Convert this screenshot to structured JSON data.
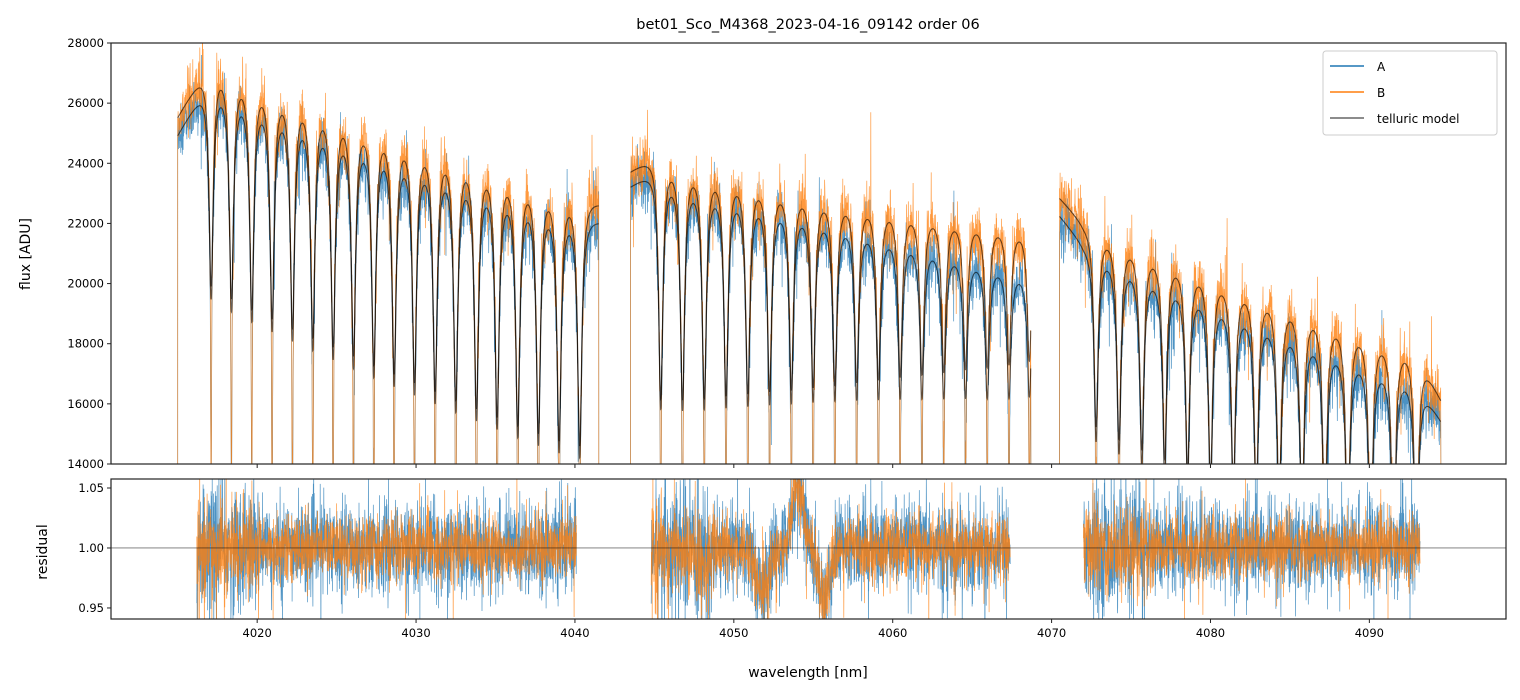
{
  "chart_data": [
    {
      "type": "line",
      "title": "bet01_Sco_M4368_2023-04-16_09142  order 06",
      "xlabel": "",
      "ylabel": "flux [ADU]",
      "xlim": [
        4010.8,
        4098.6
      ],
      "ylim": [
        14000,
        28000
      ],
      "yticks": [
        "14000",
        "16000",
        "18000",
        "20000",
        "22000",
        "24000",
        "26000",
        "28000"
      ],
      "ytick_values": [
        14000,
        16000,
        18000,
        20000,
        22000,
        24000,
        26000,
        28000
      ],
      "legend": {
        "position": "top-right",
        "entries": [
          "A",
          "B",
          "telluric model"
        ]
      },
      "colors": {
        "A": "#1f77b4",
        "B": "#ff7f0e",
        "model": "#000000"
      },
      "segments": [
        {
          "range": [
            4015.0,
            4041.5
          ],
          "cont_A": [
            [
              4015.0,
              25000
            ],
            [
              4017,
              26950
            ],
            [
              4040,
              22550
            ],
            [
              4041.5,
              22200
            ]
          ],
          "cont_B": [
            [
              4015.0,
              25600
            ],
            [
              4017,
              27550
            ],
            [
              4040,
              23180
            ],
            [
              4041.5,
              22800
            ]
          ],
          "lines": [
            4017.1,
            4018.38,
            4019.66,
            4020.94,
            4022.22,
            4023.5,
            4024.78,
            4026.06,
            4027.34,
            4028.62,
            4029.9,
            4031.2,
            4032.5,
            4033.8,
            4035.1,
            4036.4,
            4037.7,
            4039.0,
            4040.3
          ],
          "depth": [
            0.27,
            0.36
          ]
        },
        {
          "range": [
            4043.5,
            4068.7
          ],
          "cont_A": [
            [
              4043.5,
              23300
            ],
            [
              4045,
              23900
            ],
            [
              4056,
              22400
            ],
            [
              4068.7,
              20400
            ]
          ],
          "cont_B": [
            [
              4043.5,
              23800
            ],
            [
              4045,
              24400
            ],
            [
              4056,
              23100
            ],
            [
              4068.7,
              21900
            ]
          ],
          "lines": [
            4045.4,
            4046.77,
            4048.14,
            4049.51,
            4050.88,
            4052.25,
            4053.62,
            4054.99,
            4056.36,
            4057.73,
            4059.1,
            4060.47,
            4061.84,
            4063.21,
            4064.58,
            4065.95,
            4067.32,
            4068.6
          ],
          "depth": [
            0.33,
            0.2
          ]
        },
        {
          "range": [
            4070.5,
            4094.5
          ],
          "cont_A": [
            [
              4070.5,
              22300
            ],
            [
              4072,
              21400
            ],
            [
              4093,
              16900
            ],
            [
              4094.5,
              15500
            ]
          ],
          "cont_B": [
            [
              4070.5,
              22900
            ],
            [
              4072,
              22100
            ],
            [
              4093,
              17900
            ],
            [
              4094.5,
              16200
            ]
          ],
          "lines": [
            4072.8,
            4074.24,
            4075.68,
            4077.12,
            4078.56,
            4080.0,
            4081.44,
            4082.88,
            4084.32,
            4085.76,
            4087.2,
            4088.64,
            4090.08,
            4091.52,
            4092.96
          ],
          "depth": [
            0.3,
            0.38
          ]
        }
      ],
      "noise_adu": 450
    },
    {
      "type": "line",
      "xlabel": "wavelength [nm]",
      "ylabel": "residual",
      "xlim": [
        4010.8,
        4098.6
      ],
      "ylim": [
        0.9408,
        1.0575
      ],
      "xticks": [
        "4020",
        "4030",
        "4040",
        "4050",
        "4060",
        "4070",
        "4080",
        "4090"
      ],
      "xtick_values": [
        4020,
        4030,
        4040,
        4050,
        4060,
        4070,
        4080,
        4090
      ],
      "yticks": [
        "0.95",
        "1.00",
        "1.05"
      ],
      "ytick_values": [
        0.95,
        1.0,
        1.05
      ],
      "reference_line": 1.0,
      "segments": [
        [
          4016.2,
          4040.1
        ],
        [
          4044.8,
          4067.4
        ],
        [
          4072.0,
          4093.2
        ]
      ],
      "noise": 0.016,
      "features": [
        [
          4048.0,
          -0.01,
          1.2
        ],
        [
          4051.8,
          -0.035,
          0.7
        ],
        [
          4054.0,
          0.055,
          0.6
        ],
        [
          4055.7,
          -0.04,
          0.6
        ]
      ]
    }
  ]
}
